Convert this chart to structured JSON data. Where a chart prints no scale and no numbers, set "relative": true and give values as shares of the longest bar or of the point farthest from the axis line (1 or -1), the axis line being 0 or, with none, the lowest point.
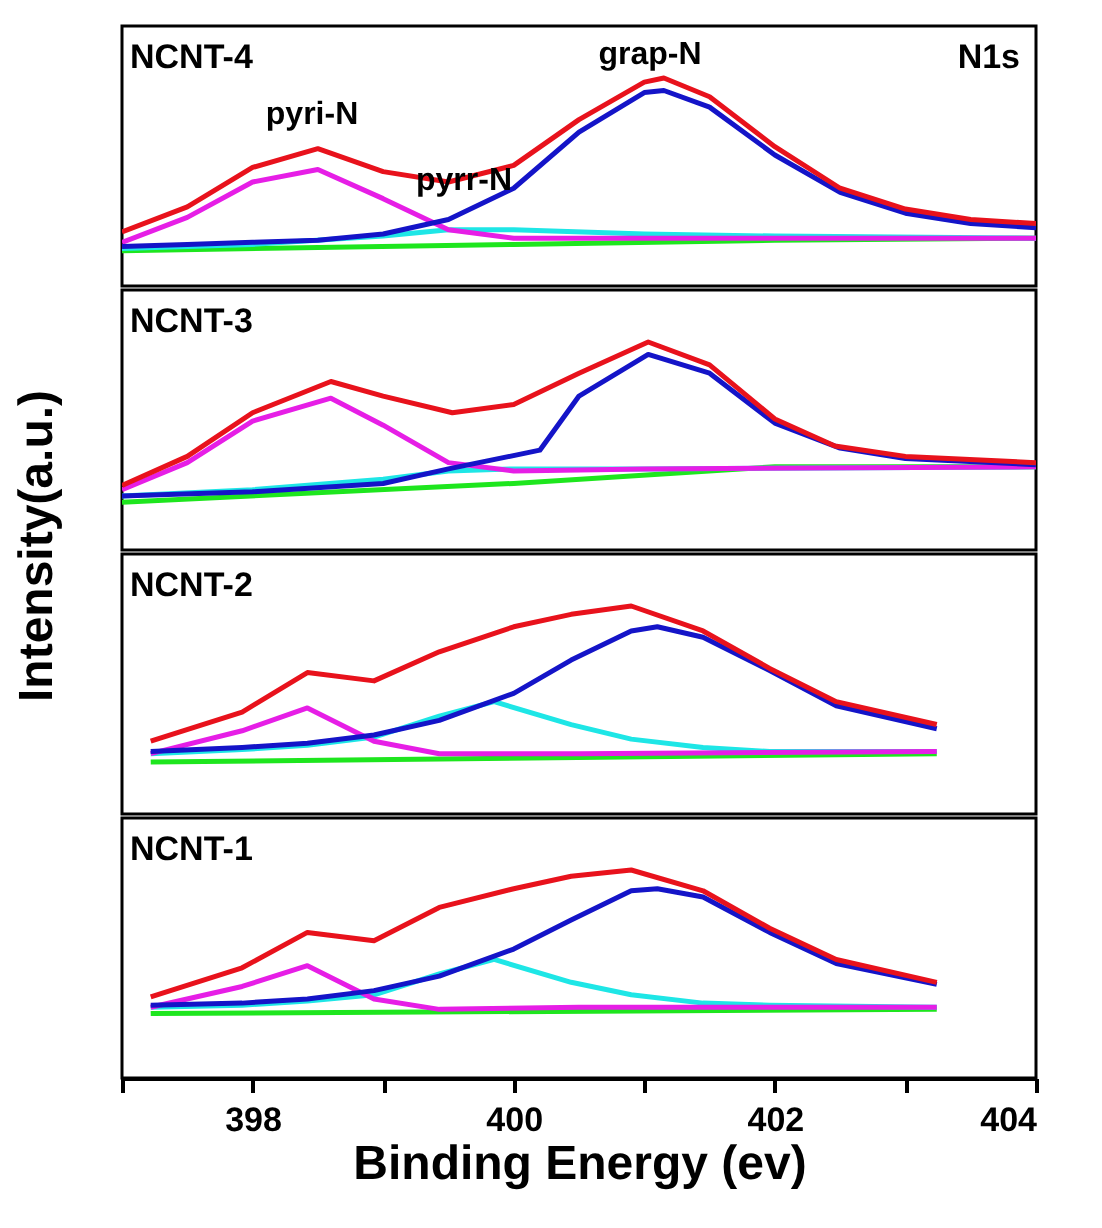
{
  "chart_data": [
    {
      "type": "line",
      "relative": true,
      "ylabel": "Intensity(a.u.)",
      "tick_labels": false,
      "xlim": [
        397,
        404
      ],
      "annotations": [
        "NCNT-4",
        "N1s",
        "pyri-N",
        "pyrr-N",
        "grap-N"
      ],
      "series": [
        {
          "color": "#1ee61e",
          "x": [
            397,
            400,
            402,
            404
          ],
          "values": [
            0.17,
            0.2,
            0.22,
            0.23
          ]
        },
        {
          "color": "#1ee6e6",
          "x": [
            397,
            398,
            399,
            399.5,
            400,
            401,
            402,
            404
          ],
          "values": [
            0.18,
            0.2,
            0.24,
            0.27,
            0.27,
            0.25,
            0.24,
            0.23
          ]
        },
        {
          "color": "#e61ee6",
          "x": [
            397,
            397.5,
            398,
            398.5,
            399,
            399.5,
            400,
            401,
            404
          ],
          "values": [
            0.21,
            0.33,
            0.5,
            0.56,
            0.42,
            0.27,
            0.23,
            0.23,
            0.23
          ]
        },
        {
          "color": "#1414c8",
          "x": [
            397,
            397.5,
            398,
            398.5,
            399,
            399.5,
            400,
            400.5,
            401,
            401.15,
            401.5,
            402,
            402.5,
            403,
            403.5,
            404
          ],
          "values": [
            0.19,
            0.2,
            0.21,
            0.22,
            0.25,
            0.32,
            0.47,
            0.74,
            0.93,
            0.94,
            0.86,
            0.63,
            0.45,
            0.35,
            0.3,
            0.28
          ]
        },
        {
          "color": "#e8121c",
          "x": [
            397,
            397.5,
            398,
            398.5,
            399,
            399.5,
            400,
            400.5,
            401,
            401.15,
            401.5,
            402,
            402.5,
            403,
            403.5,
            404
          ],
          "values": [
            0.26,
            0.38,
            0.57,
            0.66,
            0.55,
            0.5,
            0.58,
            0.8,
            0.98,
            1.0,
            0.91,
            0.67,
            0.47,
            0.37,
            0.32,
            0.3
          ]
        }
      ]
    },
    {
      "type": "line",
      "relative": true,
      "tick_labels": false,
      "xlim": [
        397,
        404
      ],
      "annotations": [
        "NCNT-3"
      ],
      "series": [
        {
          "color": "#1ee61e",
          "x": [
            397,
            400,
            402,
            404
          ],
          "values": [
            0.23,
            0.32,
            0.4,
            0.4
          ]
        },
        {
          "color": "#1ee6e6",
          "x": [
            397,
            398,
            399,
            399.5,
            400,
            401,
            404
          ],
          "values": [
            0.26,
            0.29,
            0.34,
            0.38,
            0.39,
            0.39,
            0.4
          ]
        },
        {
          "color": "#e61ee6",
          "x": [
            397,
            397.5,
            398,
            398.6,
            399,
            399.5,
            400,
            401,
            404
          ],
          "values": [
            0.29,
            0.42,
            0.62,
            0.73,
            0.6,
            0.42,
            0.38,
            0.39,
            0.4
          ]
        },
        {
          "color": "#1414c8",
          "x": [
            397,
            398,
            399,
            399.5,
            400.2,
            400.5,
            401.03,
            401.5,
            402,
            402.5,
            403,
            404
          ],
          "values": [
            0.26,
            0.28,
            0.32,
            0.39,
            0.48,
            0.74,
            0.94,
            0.85,
            0.61,
            0.49,
            0.44,
            0.41
          ]
        },
        {
          "color": "#e8121c",
          "x": [
            397,
            397.5,
            398,
            398.6,
            399,
            399.53,
            400,
            400.5,
            401.03,
            401.5,
            402,
            402.46,
            403,
            404
          ],
          "values": [
            0.31,
            0.45,
            0.66,
            0.81,
            0.74,
            0.66,
            0.7,
            0.85,
            1.0,
            0.89,
            0.63,
            0.5,
            0.45,
            0.42
          ]
        }
      ]
    },
    {
      "type": "line",
      "relative": true,
      "tick_labels": false,
      "xlim": [
        397,
        404
      ],
      "annotations": [
        "NCNT-2"
      ],
      "series": [
        {
          "color": "#1ee61e",
          "x": [
            397.22,
            403.24
          ],
          "values": [
            0.25,
            0.29
          ]
        },
        {
          "color": "#1ee6e6",
          "x": [
            397.22,
            397.92,
            398.42,
            398.93,
            399.43,
            399.85,
            400.44,
            400.9,
            401.45,
            401.96,
            403.24
          ],
          "values": [
            0.29,
            0.31,
            0.33,
            0.37,
            0.47,
            0.54,
            0.43,
            0.36,
            0.32,
            0.3,
            0.3
          ]
        },
        {
          "color": "#e61ee6",
          "x": [
            397.22,
            397.92,
            398.42,
            398.93,
            399.43,
            400.5,
            403.24
          ],
          "values": [
            0.29,
            0.4,
            0.51,
            0.35,
            0.29,
            0.29,
            0.3
          ]
        },
        {
          "color": "#1414c8",
          "x": [
            397.22,
            397.92,
            398.42,
            398.93,
            399.43,
            400.0,
            400.44,
            400.9,
            401.1,
            401.45,
            401.96,
            402.47,
            403.24
          ],
          "values": [
            0.3,
            0.32,
            0.34,
            0.38,
            0.45,
            0.58,
            0.74,
            0.88,
            0.9,
            0.85,
            0.69,
            0.52,
            0.41
          ]
        },
        {
          "color": "#e8121c",
          "x": [
            397.22,
            397.92,
            398.42,
            398.93,
            399.43,
            400.0,
            400.44,
            400.9,
            401.45,
            401.96,
            402.47,
            403.24
          ],
          "values": [
            0.35,
            0.49,
            0.68,
            0.64,
            0.78,
            0.9,
            0.96,
            1.0,
            0.88,
            0.7,
            0.54,
            0.43
          ]
        }
      ]
    },
    {
      "type": "line",
      "relative": true,
      "xlabel": "Binding Energy (ev)",
      "xlim": [
        397,
        404
      ],
      "xticks": [
        {
          "value": 397,
          "label": null
        },
        398,
        {
          "value": 399,
          "label": null
        },
        400,
        {
          "value": 401,
          "label": null
        },
        402,
        {
          "value": 403,
          "label": null
        },
        404
      ],
      "annotations": [
        "NCNT-1"
      ],
      "series": [
        {
          "color": "#1ee61e",
          "x": [
            397.22,
            403.24
          ],
          "values": [
            0.31,
            0.33
          ]
        },
        {
          "color": "#1ee6e6",
          "x": [
            397.22,
            397.92,
            398.42,
            398.93,
            399.43,
            399.85,
            400.44,
            400.9,
            401.45,
            401.96,
            403.24
          ],
          "values": [
            0.34,
            0.35,
            0.37,
            0.4,
            0.5,
            0.57,
            0.46,
            0.4,
            0.36,
            0.35,
            0.34
          ]
        },
        {
          "color": "#e61ee6",
          "x": [
            397.22,
            397.92,
            398.42,
            398.93,
            399.43,
            400.5,
            403.24
          ],
          "values": [
            0.34,
            0.44,
            0.54,
            0.38,
            0.33,
            0.34,
            0.34
          ]
        },
        {
          "color": "#1414c8",
          "x": [
            397.22,
            397.92,
            398.42,
            398.93,
            399.43,
            400.0,
            400.44,
            400.9,
            401.1,
            401.45,
            401.96,
            402.47,
            403.24
          ],
          "values": [
            0.35,
            0.36,
            0.38,
            0.42,
            0.49,
            0.62,
            0.76,
            0.9,
            0.91,
            0.87,
            0.7,
            0.55,
            0.45
          ]
        },
        {
          "color": "#e8121c",
          "x": [
            397.22,
            397.92,
            398.42,
            398.93,
            399.43,
            400.0,
            400.44,
            400.9,
            401.45,
            401.96,
            402.47,
            403.24
          ],
          "values": [
            0.39,
            0.53,
            0.7,
            0.66,
            0.82,
            0.91,
            0.97,
            1.0,
            0.9,
            0.72,
            0.57,
            0.46
          ]
        }
      ]
    }
  ]
}
